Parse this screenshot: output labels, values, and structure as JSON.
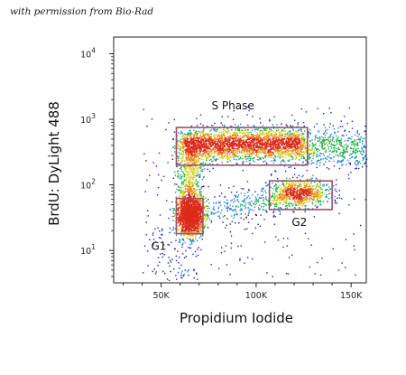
{
  "credit_text": "with permission from Bio-Rad",
  "chart_data": {
    "type": "scatter",
    "title": "",
    "xlabel": "Propidium Iodide",
    "ylabel": "BrdU: DyLight 488",
    "x_ticks": [
      "50K",
      "100K",
      "150K"
    ],
    "x_tick_values": [
      50000,
      100000,
      150000
    ],
    "xlim": [
      25000,
      158000
    ],
    "y_scale": "log",
    "y_ticks": [
      {
        "base": "10",
        "exp": "1",
        "value": 10
      },
      {
        "base": "10",
        "exp": "2",
        "value": 100
      },
      {
        "base": "10",
        "exp": "3",
        "value": 1000
      },
      {
        "base": "10",
        "exp": "4",
        "value": 10000
      }
    ],
    "ylim": [
      3.2,
      18000
    ],
    "gates": [
      {
        "name": "S Phase",
        "x_range": [
          58000,
          127000
        ],
        "y_range": [
          200,
          750
        ]
      },
      {
        "name": "G1",
        "x_range": [
          58000,
          72000
        ],
        "y_range": [
          18,
          62
        ]
      },
      {
        "name": "G2",
        "x_range": [
          107000,
          140000
        ],
        "y_range": [
          42,
          115
        ]
      }
    ],
    "populations": [
      {
        "name": "G1",
        "x_center": 65000,
        "y_center": 33,
        "x_spread": 3500,
        "log_y_spread": 0.14
      },
      {
        "name": "S Phase",
        "x_center": 92000,
        "y_center": 420,
        "x_spread": 18000,
        "log_y_spread": 0.12
      },
      {
        "name": "G2",
        "x_center": 123000,
        "y_center": 75,
        "x_spread": 8000,
        "log_y_spread": 0.1
      }
    ],
    "gate_color": "#a0525f",
    "density_colors": [
      "#1a1acc",
      "#1f7fe6",
      "#19b24b",
      "#d6d21a",
      "#e68a1a",
      "#dd2a1a"
    ]
  }
}
